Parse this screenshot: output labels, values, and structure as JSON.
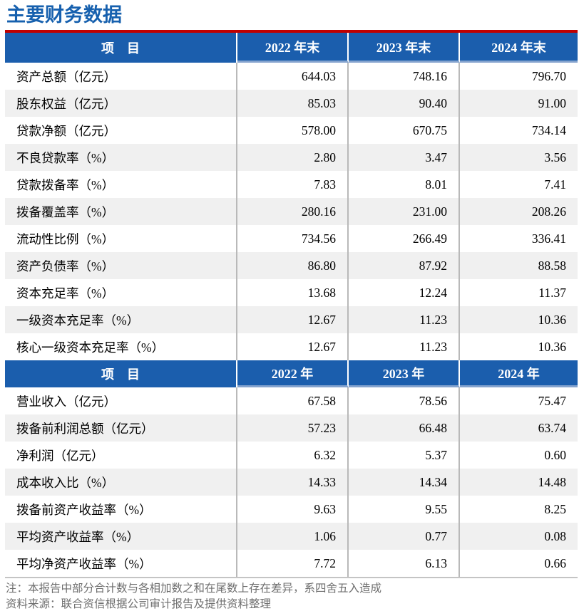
{
  "page": {
    "title": "主要财务数据"
  },
  "colors": {
    "header_blue": "#1B5EAD",
    "title_blue": "#1660AE",
    "rule_red": "#C00000",
    "alt_row": "#F0F0F0",
    "divider": "#B9B9B9",
    "header_underline": "#84A3CE",
    "footer_gray": "#6E6E6E",
    "table_bottom": "#C4C4C4"
  },
  "table1": {
    "headers": [
      "项　目",
      "2022 年末",
      "2023 年末",
      "2024 年末"
    ],
    "rows": [
      {
        "label": "资产总额（亿元）",
        "values": [
          "644.03",
          "748.16",
          "796.70"
        ]
      },
      {
        "label": "股东权益（亿元）",
        "values": [
          "85.03",
          "90.40",
          "91.00"
        ]
      },
      {
        "label": "贷款净额（亿元）",
        "values": [
          "578.00",
          "670.75",
          "734.14"
        ]
      },
      {
        "label": "不良贷款率（%）",
        "values": [
          "2.80",
          "3.47",
          "3.56"
        ]
      },
      {
        "label": "贷款拨备率（%）",
        "values": [
          "7.83",
          "8.01",
          "7.41"
        ]
      },
      {
        "label": "拨备覆盖率（%）",
        "values": [
          "280.16",
          "231.00",
          "208.26"
        ]
      },
      {
        "label": "流动性比例（%）",
        "values": [
          "734.56",
          "266.49",
          "336.41"
        ]
      },
      {
        "label": "资产负债率（%）",
        "values": [
          "86.80",
          "87.92",
          "88.58"
        ]
      },
      {
        "label": "资本充足率（%）",
        "values": [
          "13.68",
          "12.24",
          "11.37"
        ]
      },
      {
        "label": "一级资本充足率（%）",
        "values": [
          "12.67",
          "11.23",
          "10.36"
        ]
      },
      {
        "label": "核心一级资本充足率（%）",
        "values": [
          "12.67",
          "11.23",
          "10.36"
        ]
      }
    ]
  },
  "table2": {
    "headers": [
      "项　目",
      "2022 年",
      "2023 年",
      "2024 年"
    ],
    "rows": [
      {
        "label": "营业收入（亿元）",
        "values": [
          "67.58",
          "78.56",
          "75.47"
        ]
      },
      {
        "label": "拨备前利润总额（亿元）",
        "values": [
          "57.23",
          "66.48",
          "63.74"
        ]
      },
      {
        "label": "净利润（亿元）",
        "values": [
          "6.32",
          "5.37",
          "0.60"
        ]
      },
      {
        "label": "成本收入比（%）",
        "values": [
          "14.33",
          "14.34",
          "14.48"
        ]
      },
      {
        "label": "拨备前资产收益率（%）",
        "values": [
          "9.63",
          "9.55",
          "8.25"
        ]
      },
      {
        "label": "平均资产收益率（%）",
        "values": [
          "1.06",
          "0.77",
          "0.08"
        ]
      },
      {
        "label": "平均净资产收益率（%）",
        "values": [
          "7.72",
          "6.13",
          "0.66"
        ]
      }
    ]
  },
  "footer": {
    "note": "注：本报告中部分合计数与各相加数之和在尾数上存在差异，系四舍五入造成",
    "source": "资料来源：联合资信根据公司审计报告及提供资料整理"
  }
}
